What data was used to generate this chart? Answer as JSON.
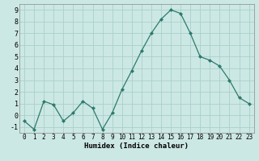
{
  "x": [
    0,
    1,
    2,
    3,
    4,
    5,
    6,
    7,
    8,
    9,
    10,
    11,
    12,
    13,
    14,
    15,
    16,
    17,
    18,
    19,
    20,
    21,
    22,
    23
  ],
  "y": [
    -0.5,
    -1.2,
    1.2,
    0.9,
    -0.5,
    0.2,
    1.2,
    0.6,
    -1.2,
    0.2,
    2.2,
    3.8,
    5.5,
    7.0,
    8.2,
    9.0,
    8.7,
    7.0,
    5.0,
    4.7,
    4.2,
    3.0,
    1.5,
    1.0
  ],
  "xlabel": "Humidex (Indice chaleur)",
  "ylim": [
    -1.5,
    9.5
  ],
  "xlim": [
    -0.5,
    23.5
  ],
  "yticks": [
    -1,
    0,
    1,
    2,
    3,
    4,
    5,
    6,
    7,
    8,
    9
  ],
  "xticks": [
    0,
    1,
    2,
    3,
    4,
    5,
    6,
    7,
    8,
    9,
    10,
    11,
    12,
    13,
    14,
    15,
    16,
    17,
    18,
    19,
    20,
    21,
    22,
    23
  ],
  "line_color": "#2d7a6e",
  "marker_color": "#2d7a6e",
  "bg_color": "#cce8e4",
  "grid_color": "#aacfcb",
  "xlabel_fontsize": 6.5,
  "tick_fontsize": 5.5
}
